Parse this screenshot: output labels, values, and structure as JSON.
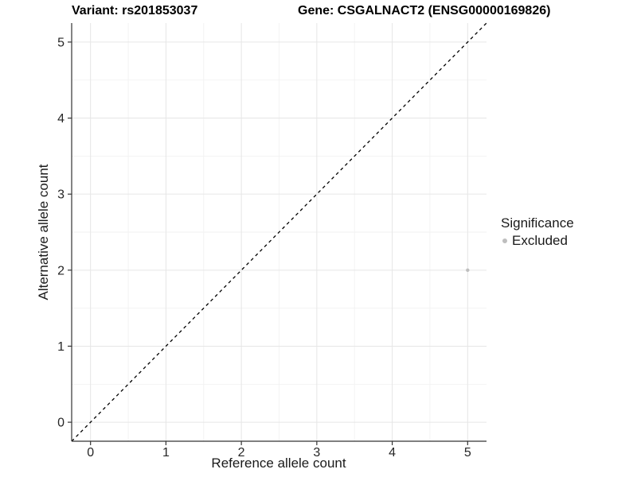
{
  "header": {
    "variant_title": "Variant: rs201853037",
    "gene_title": "Gene: CSGALNACT2 (ENSG00000169826)"
  },
  "chart_data": {
    "type": "scatter",
    "title_left": "Variant: rs201853037",
    "title_right": "Gene: CSGALNACT2 (ENSG00000169826)",
    "xlabel": "Reference allele count",
    "ylabel": "Alternative allele count",
    "xlim": [
      -0.25,
      5.25
    ],
    "ylim": [
      -0.25,
      5.25
    ],
    "x_ticks": [
      0,
      1,
      2,
      3,
      4,
      5
    ],
    "y_ticks": [
      0,
      1,
      2,
      3,
      4,
      5
    ],
    "x_minor": [
      0.5,
      1.5,
      2.5,
      3.5,
      4.5
    ],
    "y_minor": [
      0.5,
      1.5,
      2.5,
      3.5,
      4.5
    ],
    "grid": true,
    "identity_line": {
      "style": "dashed",
      "color": "#000000",
      "from": -0.25,
      "to": 5.25
    },
    "series": [
      {
        "name": "Excluded",
        "color": "#bebebe",
        "point_radius": 2.2,
        "points": [
          [
            5,
            2
          ]
        ]
      }
    ],
    "legend": {
      "title": "Significance",
      "position": "right",
      "items": [
        {
          "label": "Excluded",
          "color": "#bebebe"
        }
      ]
    },
    "colors": {
      "background": "#ffffff",
      "grid_major": "#e6e6e6",
      "grid_minor": "#f2f2f2",
      "axis_line": "#333333",
      "tick_mark": "#333333",
      "tick_text": "#262626",
      "title_text": "#000000"
    }
  }
}
